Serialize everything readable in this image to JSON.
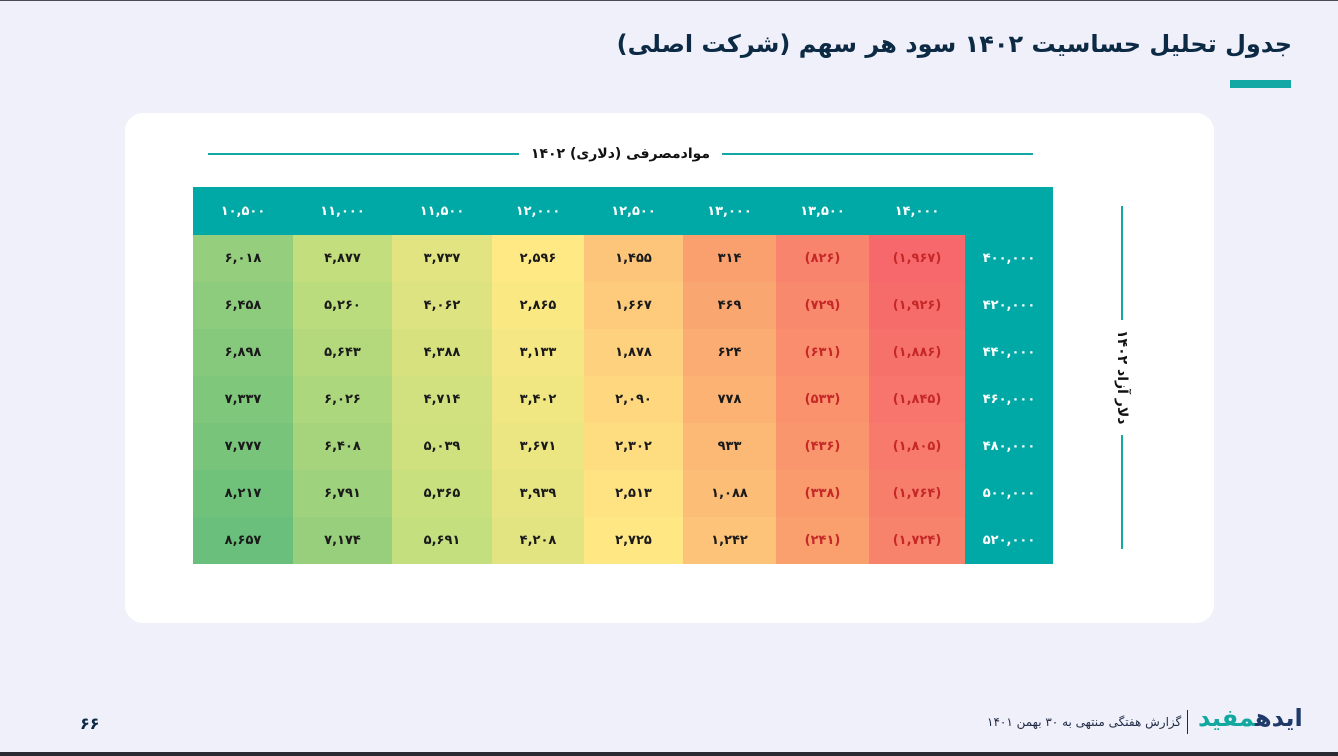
{
  "title": "جدول تحلیل حساسیت ۱۴۰۲ سود هر سهم (شرکت اصلی)",
  "column_axis_label": "موادمصرفی (دلاری) ۱۴۰۲",
  "row_axis_label": "دلار آزاد ۱۴۰۲",
  "columns": [
    "۱۴,۰۰۰",
    "۱۳,۵۰۰",
    "۱۳,۰۰۰",
    "۱۲,۵۰۰",
    "۱۲,۰۰۰",
    "۱۱,۵۰۰",
    "۱۱,۰۰۰",
    "۱۰,۵۰۰"
  ],
  "rows": [
    {
      "label": "۴۰۰,۰۰۰",
      "values": [
        "(۱,۹۶۷)",
        "(۸۲۶)",
        "۳۱۴",
        "۱,۴۵۵",
        "۲,۵۹۶",
        "۳,۷۳۷",
        "۴,۸۷۷",
        "۶,۰۱۸"
      ]
    },
    {
      "label": "۴۲۰,۰۰۰",
      "values": [
        "(۱,۹۲۶)",
        "(۷۲۹)",
        "۴۶۹",
        "۱,۶۶۷",
        "۲,۸۶۵",
        "۴,۰۶۲",
        "۵,۲۶۰",
        "۶,۴۵۸"
      ]
    },
    {
      "label": "۴۴۰,۰۰۰",
      "values": [
        "(۱,۸۸۶)",
        "(۶۳۱)",
        "۶۲۴",
        "۱,۸۷۸",
        "۳,۱۳۳",
        "۴,۳۸۸",
        "۵,۶۴۳",
        "۶,۸۹۸"
      ]
    },
    {
      "label": "۴۶۰,۰۰۰",
      "values": [
        "(۱,۸۴۵)",
        "(۵۳۳)",
        "۷۷۸",
        "۲,۰۹۰",
        "۳,۴۰۲",
        "۴,۷۱۴",
        "۶,۰۲۶",
        "۷,۳۳۷"
      ]
    },
    {
      "label": "۴۸۰,۰۰۰",
      "values": [
        "(۱,۸۰۵)",
        "(۴۳۶)",
        "۹۳۳",
        "۲,۳۰۲",
        "۳,۶۷۱",
        "۵,۰۳۹",
        "۶,۴۰۸",
        "۷,۷۷۷"
      ]
    },
    {
      "label": "۵۰۰,۰۰۰",
      "values": [
        "(۱,۷۶۴)",
        "(۳۳۸)",
        "۱,۰۸۸",
        "۲,۵۱۳",
        "۳,۹۳۹",
        "۵,۳۶۵",
        "۶,۷۹۱",
        "۸,۲۱۷"
      ]
    },
    {
      "label": "۵۲۰,۰۰۰",
      "values": [
        "(۱,۷۲۴)",
        "(۲۴۱)",
        "۱,۲۴۲",
        "۲,۷۲۵",
        "۴,۲۰۸",
        "۵,۶۹۱",
        "۷,۱۷۴",
        "۸,۶۵۷"
      ]
    }
  ],
  "footer": {
    "page_number": "۶۶",
    "report_text": "گزارش هفتگی منتهی به ۳۰ بهمن ۱۴۰۱",
    "brand_part1": "ایده",
    "brand_part2": "مفید"
  },
  "colors": {
    "accent": "#00a9a5",
    "title": "#0d2a45",
    "negative_text": "#c62828"
  }
}
